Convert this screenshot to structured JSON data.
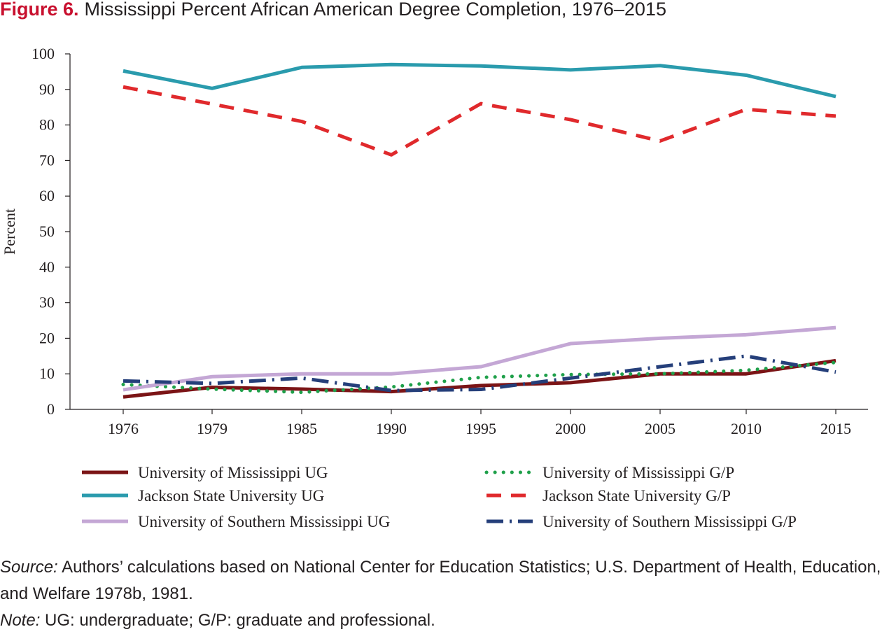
{
  "title": {
    "figure_label": "Figure 6.",
    "text": "Mississippi Percent African American Degree Completion, 1976–2015"
  },
  "footer": {
    "source_label": "Source:",
    "source_text": "Authors’ calculations based on National Center for Education Statistics; U.S. Department of Health, Education, and Welfare 1978b, 1981.",
    "note_label": "Note:",
    "note_text": "UG: undergraduate; G/P: graduate and professional."
  },
  "chart_data": {
    "type": "line",
    "title": "Mississippi Percent African American Degree Completion, 1976–2015",
    "xlabel": "",
    "ylabel": "Percent",
    "ylim": [
      0,
      100
    ],
    "yticks": [
      0,
      10,
      20,
      30,
      40,
      50,
      60,
      70,
      80,
      90,
      100
    ],
    "categories": [
      "1976",
      "1979",
      "1985",
      "1990",
      "1995",
      "2000",
      "2005",
      "2010",
      "2015"
    ],
    "grid": false,
    "legend_position": "bottom",
    "series": [
      {
        "name": "University of Mississippi UG",
        "color": "#7b1416",
        "style": "solid",
        "values": [
          3.5,
          6.2,
          5.7,
          5.0,
          6.7,
          7.5,
          10.0,
          10.0,
          13.7
        ]
      },
      {
        "name": "University of Mississippi G/P",
        "color": "#1fa04a",
        "style": "dotted",
        "values": [
          7.0,
          5.7,
          4.8,
          6.3,
          9.0,
          9.8,
          10.0,
          11.0,
          13.2
        ]
      },
      {
        "name": "Jackson State University UG",
        "color": "#2a9bad",
        "style": "solid",
        "values": [
          95.2,
          90.3,
          96.2,
          97.0,
          96.6,
          95.5,
          96.7,
          94.0,
          88.0
        ]
      },
      {
        "name": "Jackson State University G/P",
        "color": "#e0292c",
        "style": "dashed",
        "values": [
          90.7,
          85.9,
          81.0,
          71.6,
          86.0,
          81.5,
          75.5,
          84.4,
          82.5
        ]
      },
      {
        "name": "University of Southern Mississippi UG",
        "color": "#c4a7d5",
        "style": "solid",
        "values": [
          5.5,
          9.2,
          10.0,
          10.0,
          12.0,
          18.5,
          20.0,
          21.0,
          23.0
        ]
      },
      {
        "name": "University of Southern Mississippi G/P",
        "color": "#253f7a",
        "style": "dashdot",
        "values": [
          8.0,
          7.3,
          8.8,
          5.3,
          5.6,
          8.8,
          12.0,
          15.0,
          10.5
        ]
      }
    ]
  }
}
